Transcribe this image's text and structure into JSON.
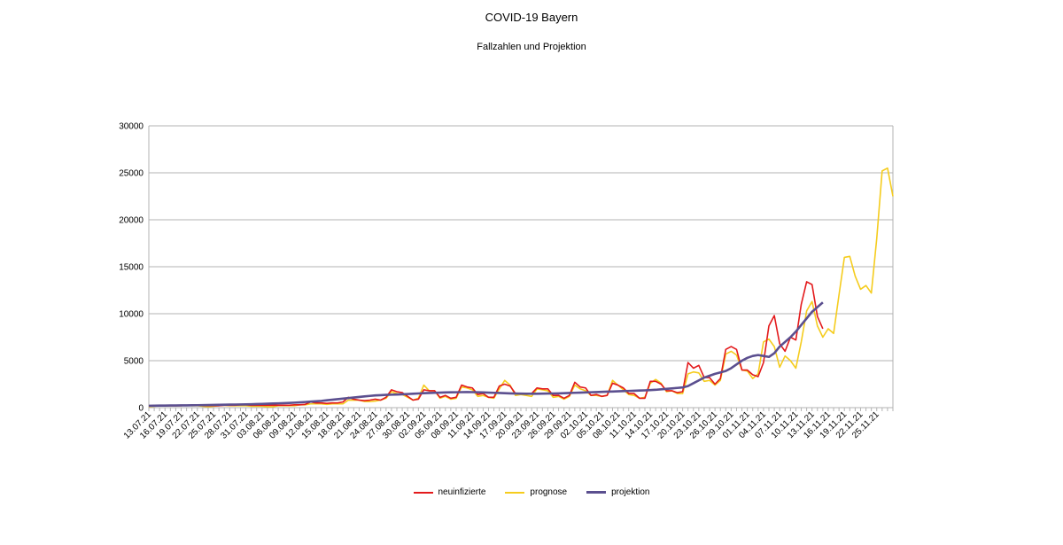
{
  "chart_data": {
    "type": "line",
    "title": "COVID-19 Bayern",
    "subtitle": "Fallzahlen und Projektion",
    "xlabel": "",
    "ylabel": "",
    "ylim": [
      0,
      30000
    ],
    "yticks": [
      0,
      5000,
      10000,
      15000,
      20000,
      25000,
      30000
    ],
    "grid": "horizontal",
    "legend_position": "bottom",
    "x_start": "13.07.21",
    "x_tick_labels": [
      "13.07.21",
      "16.07.21",
      "19.07.21",
      "22.07.21",
      "25.07.21",
      "28.07.21",
      "31.07.21",
      "03.08.21",
      "06.08.21",
      "09.08.21",
      "12.08.21",
      "15.08.21",
      "18.08.21",
      "21.08.21",
      "24.08.21",
      "27.08.21",
      "30.08.21",
      "02.09.21",
      "05.09.21",
      "08.09.21",
      "11.09.21",
      "14.09.21",
      "17.09.21",
      "20.09.21",
      "23.09.21",
      "26.09.21",
      "29.09.21",
      "02.10.21",
      "05.10.21",
      "08.10.21",
      "11.10.21",
      "14.10.21",
      "17.10.21",
      "20.10.21",
      "23.10.21",
      "26.10.21",
      "29.10.21",
      "01.11.21",
      "04.11.21",
      "07.11.21",
      "10.11.21",
      "13.11.21",
      "16.11.21",
      "19.11.21",
      "22.11.21",
      "25.11.21"
    ],
    "series": [
      {
        "name": "neuinfizierte",
        "color": "#e31a1c",
        "values": [
          150,
          250,
          200,
          200,
          200,
          200,
          200,
          250,
          250,
          250,
          200,
          200,
          200,
          200,
          250,
          250,
          250,
          300,
          300,
          250,
          250,
          250,
          250,
          250,
          250,
          250,
          250,
          300,
          300,
          350,
          600,
          500,
          500,
          450,
          500,
          500,
          600,
          1100,
          900,
          800,
          750,
          800,
          900,
          800,
          1100,
          1900,
          1700,
          1600,
          1200,
          800,
          900,
          1900,
          1800,
          1800,
          1100,
          1300,
          1000,
          1100,
          2400,
          2200,
          2100,
          1400,
          1500,
          1100,
          1100,
          2300,
          2500,
          2300,
          1500,
          1500,
          1500,
          1500,
          2100,
          2000,
          2000,
          1300,
          1300,
          1000,
          1300,
          2700,
          2200,
          2100,
          1300,
          1400,
          1200,
          1300,
          2600,
          2400,
          2100,
          1500,
          1500,
          1000,
          1000,
          2800,
          2800,
          2500,
          1800,
          1800,
          1600,
          1700,
          4800,
          4200,
          4500,
          3200,
          3200,
          2500,
          3100,
          6200,
          6500,
          6200,
          4000,
          4000,
          3500,
          3300,
          4800,
          8700,
          9800,
          6800,
          6000,
          7500,
          7200,
          11000,
          13400,
          13100,
          9700,
          8400
        ]
      },
      {
        "name": "prognose",
        "color": "#f5cc1d",
        "values": [
          100,
          150,
          200,
          200,
          200,
          200,
          200,
          250,
          200,
          200,
          150,
          100,
          150,
          200,
          250,
          200,
          200,
          200,
          200,
          150,
          150,
          150,
          100,
          100,
          200,
          200,
          200,
          200,
          300,
          300,
          400,
          400,
          400,
          350,
          400,
          400,
          400,
          800,
          800,
          800,
          650,
          650,
          700,
          800,
          1000,
          1700,
          1500,
          1400,
          1100,
          800,
          1000,
          2400,
          1800,
          1800,
          1000,
          1200,
          900,
          1000,
          2200,
          2100,
          1900,
          1200,
          1300,
          1100,
          1000,
          2000,
          2900,
          2400,
          1300,
          1400,
          1300,
          1200,
          2000,
          1900,
          1800,
          1100,
          1200,
          900,
          1200,
          2400,
          2000,
          1800,
          1300,
          1300,
          1200,
          1300,
          2900,
          2400,
          1900,
          1400,
          1300,
          1000,
          1100,
          2600,
          3000,
          2600,
          1700,
          1800,
          1500,
          1500,
          3600,
          3800,
          3700,
          2800,
          2900,
          2400,
          2900,
          5700,
          6000,
          5600,
          4000,
          3900,
          3100,
          3600,
          7000,
          7300,
          6500,
          4300,
          5500,
          5000,
          4200,
          7000,
          10300,
          11300,
          8700,
          7500,
          8400,
          7900,
          12000,
          16000,
          16100,
          14000,
          12600,
          13000,
          12200,
          18000,
          25200,
          25500,
          22500
        ]
      },
      {
        "name": "projektion",
        "color": "#5b4f8f",
        "values": [
          200,
          210,
          220,
          220,
          230,
          230,
          240,
          240,
          250,
          260,
          270,
          280,
          290,
          300,
          310,
          320,
          330,
          340,
          350,
          360,
          380,
          400,
          420,
          440,
          460,
          480,
          500,
          530,
          560,
          600,
          640,
          680,
          720,
          780,
          840,
          900,
          960,
          1020,
          1080,
          1140,
          1200,
          1250,
          1300,
          1330,
          1360,
          1380,
          1400,
          1420,
          1450,
          1480,
          1510,
          1540,
          1560,
          1580,
          1600,
          1620,
          1630,
          1640,
          1650,
          1660,
          1650,
          1640,
          1620,
          1600,
          1580,
          1560,
          1540,
          1520,
          1500,
          1490,
          1480,
          1480,
          1480,
          1490,
          1500,
          1510,
          1520,
          1540,
          1560,
          1580,
          1600,
          1620,
          1640,
          1660,
          1680,
          1700,
          1720,
          1740,
          1760,
          1780,
          1800,
          1820,
          1840,
          1870,
          1900,
          1950,
          2000,
          2050,
          2100,
          2150,
          2300,
          2600,
          2900,
          3200,
          3400,
          3600,
          3750,
          3900,
          4200,
          4600,
          5000,
          5300,
          5500,
          5600,
          5500,
          5400,
          5800,
          6500,
          7000,
          7500,
          8100,
          8800,
          9500,
          10200,
          10700,
          11200
        ]
      }
    ]
  }
}
